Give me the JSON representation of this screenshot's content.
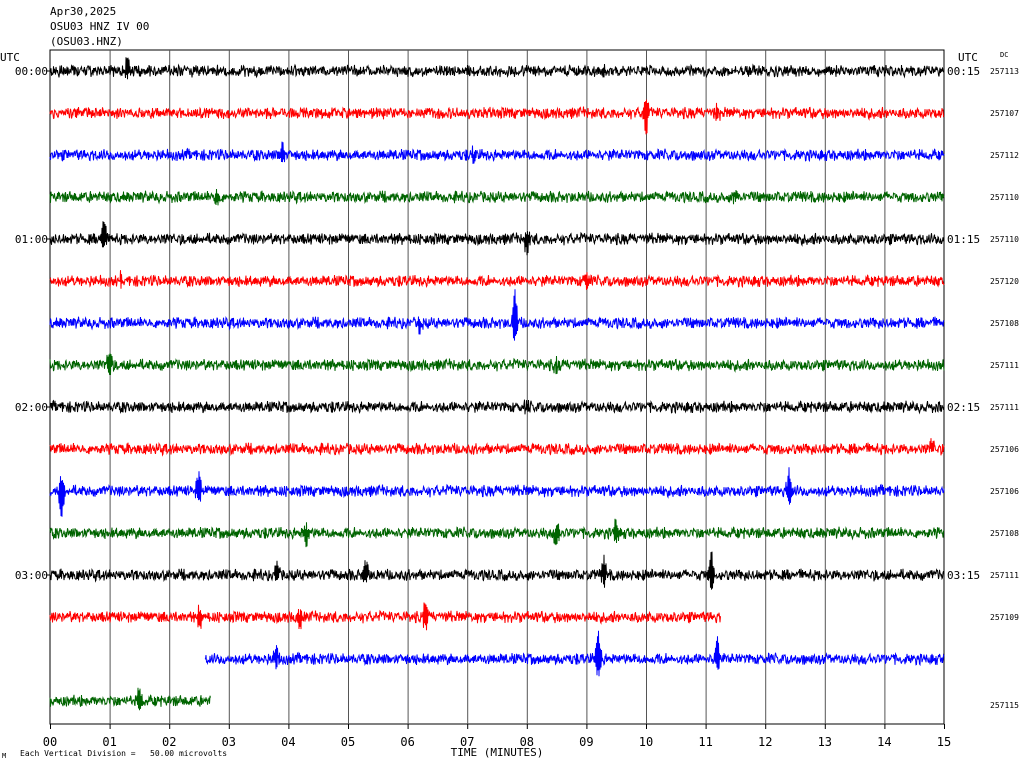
{
  "header": {
    "date": "Apr30,2025",
    "station_line": "OSU03 HNZ IV 00",
    "code": "(OSU03.HNZ)"
  },
  "left_axis_title": "UTC",
  "right_axis_title": "UTC",
  "dc_label": "DC",
  "footer": {
    "corner_mark": "M",
    "scale_note": "Each Vertical Division =   50.00 microvolts"
  },
  "colors": {
    "black": "#000000",
    "red": "#ff0000",
    "blue": "#0000ff",
    "green": "#006400",
    "grid": "#000000"
  },
  "chart_data": {
    "type": "line",
    "title": "",
    "xlabel": "TIME (MINUTES)",
    "ylabel": "",
    "xlim": [
      0,
      15
    ],
    "x_ticks": [
      "00",
      "01",
      "02",
      "03",
      "04",
      "05",
      "06",
      "07",
      "08",
      "09",
      "10",
      "11",
      "12",
      "13",
      "14",
      "15"
    ],
    "grid": true,
    "rows": [
      {
        "color": "black",
        "left_label": "00:00",
        "right_label": "00:15",
        "dc": "257113",
        "start_min": 0,
        "end_min": 15,
        "events": [
          [
            1.3,
            -12
          ],
          [
            9.3,
            8
          ]
        ]
      },
      {
        "color": "red",
        "left_label": "",
        "right_label": "",
        "dc": "257107",
        "start_min": 0,
        "end_min": 15,
        "events": [
          [
            10.0,
            22
          ],
          [
            11.2,
            10
          ]
        ]
      },
      {
        "color": "blue",
        "left_label": "",
        "right_label": "",
        "dc": "257112",
        "start_min": 0,
        "end_min": 15,
        "events": [
          [
            3.9,
            -14
          ],
          [
            7.1,
            9
          ]
        ]
      },
      {
        "color": "green",
        "left_label": "",
        "right_label": "",
        "dc": "257110",
        "start_min": 0,
        "end_min": 15,
        "events": [
          [
            2.8,
            8
          ],
          [
            11.5,
            -8
          ]
        ]
      },
      {
        "color": "black",
        "left_label": "01:00",
        "right_label": "01:15",
        "dc": "257110",
        "start_min": 0,
        "end_min": 15,
        "events": [
          [
            0.9,
            -18
          ],
          [
            8.0,
            14
          ]
        ]
      },
      {
        "color": "red",
        "left_label": "",
        "right_label": "",
        "dc": "257120",
        "start_min": 0,
        "end_min": 15,
        "events": [
          [
            1.2,
            10
          ],
          [
            9.0,
            -10
          ]
        ]
      },
      {
        "color": "blue",
        "left_label": "",
        "right_label": "",
        "dc": "257108",
        "start_min": 0,
        "end_min": 15,
        "events": [
          [
            6.2,
            10
          ],
          [
            7.8,
            -32
          ]
        ]
      },
      {
        "color": "green",
        "left_label": "",
        "right_label": "",
        "dc": "257111",
        "start_min": 0,
        "end_min": 15,
        "events": [
          [
            1.0,
            -14
          ],
          [
            8.5,
            8
          ]
        ]
      },
      {
        "color": "black",
        "left_label": "02:00",
        "right_label": "02:15",
        "dc": "257111",
        "start_min": 0,
        "end_min": 15,
        "events": [
          [
            8.0,
            8
          ]
        ]
      },
      {
        "color": "red",
        "left_label": "",
        "right_label": "",
        "dc": "257106",
        "start_min": 0,
        "end_min": 15,
        "events": [
          [
            14.8,
            -10
          ]
        ]
      },
      {
        "color": "blue",
        "left_label": "",
        "right_label": "",
        "dc": "257106",
        "start_min": 0,
        "end_min": 15,
        "events": [
          [
            0.2,
            28
          ],
          [
            2.5,
            -22
          ],
          [
            12.4,
            -20
          ]
        ]
      },
      {
        "color": "green",
        "left_label": "",
        "right_label": "",
        "dc": "257108",
        "start_min": 0,
        "end_min": 15,
        "events": [
          [
            4.3,
            14
          ],
          [
            8.5,
            14
          ],
          [
            9.5,
            -14
          ]
        ]
      },
      {
        "color": "black",
        "left_label": "03:00",
        "right_label": "03:15",
        "dc": "257111",
        "start_min": 0,
        "end_min": 15,
        "events": [
          [
            3.8,
            -14
          ],
          [
            5.3,
            -16
          ],
          [
            9.3,
            -16
          ],
          [
            11.1,
            -22
          ]
        ]
      },
      {
        "color": "red",
        "left_label": "",
        "right_label": "",
        "dc": "257109",
        "start_min": 0,
        "end_min": 11.25,
        "events": [
          [
            2.5,
            12
          ],
          [
            4.2,
            14
          ],
          [
            6.3,
            -18
          ]
        ]
      },
      {
        "color": "blue",
        "left_label": "",
        "right_label": "",
        "dc": "",
        "start_min": 2.6,
        "end_min": 15,
        "events": [
          [
            3.8,
            -14
          ],
          [
            9.2,
            -28
          ],
          [
            11.2,
            -22
          ]
        ]
      },
      {
        "color": "green",
        "left_label": "",
        "right_label": "",
        "dc": "257115",
        "start_min": 0,
        "end_min": 2.7,
        "events": [
          [
            1.5,
            -12
          ]
        ]
      }
    ]
  }
}
